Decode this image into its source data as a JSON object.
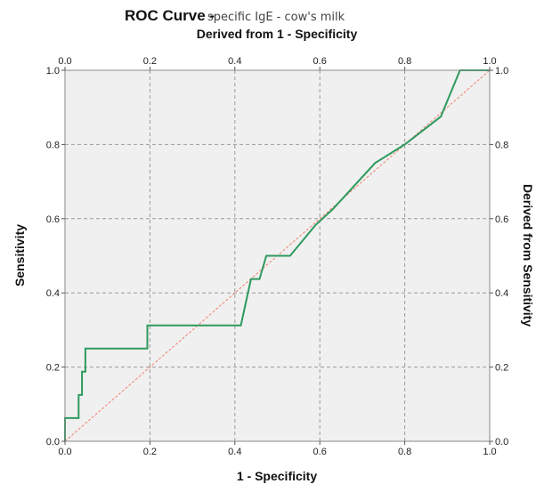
{
  "chart_data": {
    "type": "line",
    "title": "ROC Curve -",
    "subtitle": "specific IgE - cow's milk",
    "top_axis_label": "Derived from 1 - Specificity",
    "xlabel": "1 - Specificity",
    "ylabel": "Sensitivity",
    "right_axis_label": "Derived from Sensitivity",
    "xlim": [
      0,
      1
    ],
    "ylim": [
      0,
      1
    ],
    "x_ticks": [
      "0.0",
      "0.2",
      "0.4",
      "0.6",
      "0.8",
      "1.0"
    ],
    "y_ticks": [
      "0.0",
      "0.2",
      "0.4",
      "0.6",
      "0.8",
      "1.0"
    ],
    "grid": true,
    "colors": {
      "roc_line": "#2e9a5e",
      "reference_line": "#f08070",
      "plot_background": "#f0f0f0",
      "grid": "#9a9a9a"
    },
    "series": [
      {
        "x": [
          0.0,
          0.0,
          0.032,
          0.032,
          0.04,
          0.04,
          0.048,
          0.048,
          0.194,
          0.194,
          0.414,
          0.438,
          0.458,
          0.474,
          0.474,
          0.53,
          0.59,
          0.63,
          0.73,
          0.8,
          0.885,
          0.93,
          1.0
        ],
        "y": [
          0.0,
          0.0625,
          0.0625,
          0.125,
          0.125,
          0.1875,
          0.1875,
          0.25,
          0.25,
          0.3125,
          0.3125,
          0.4375,
          0.4375,
          0.5,
          0.5,
          0.5,
          0.583,
          0.625,
          0.75,
          0.8,
          0.875,
          1.0,
          1.0
        ]
      },
      {
        "x": [
          0,
          1
        ],
        "y": [
          0,
          1
        ]
      }
    ]
  }
}
